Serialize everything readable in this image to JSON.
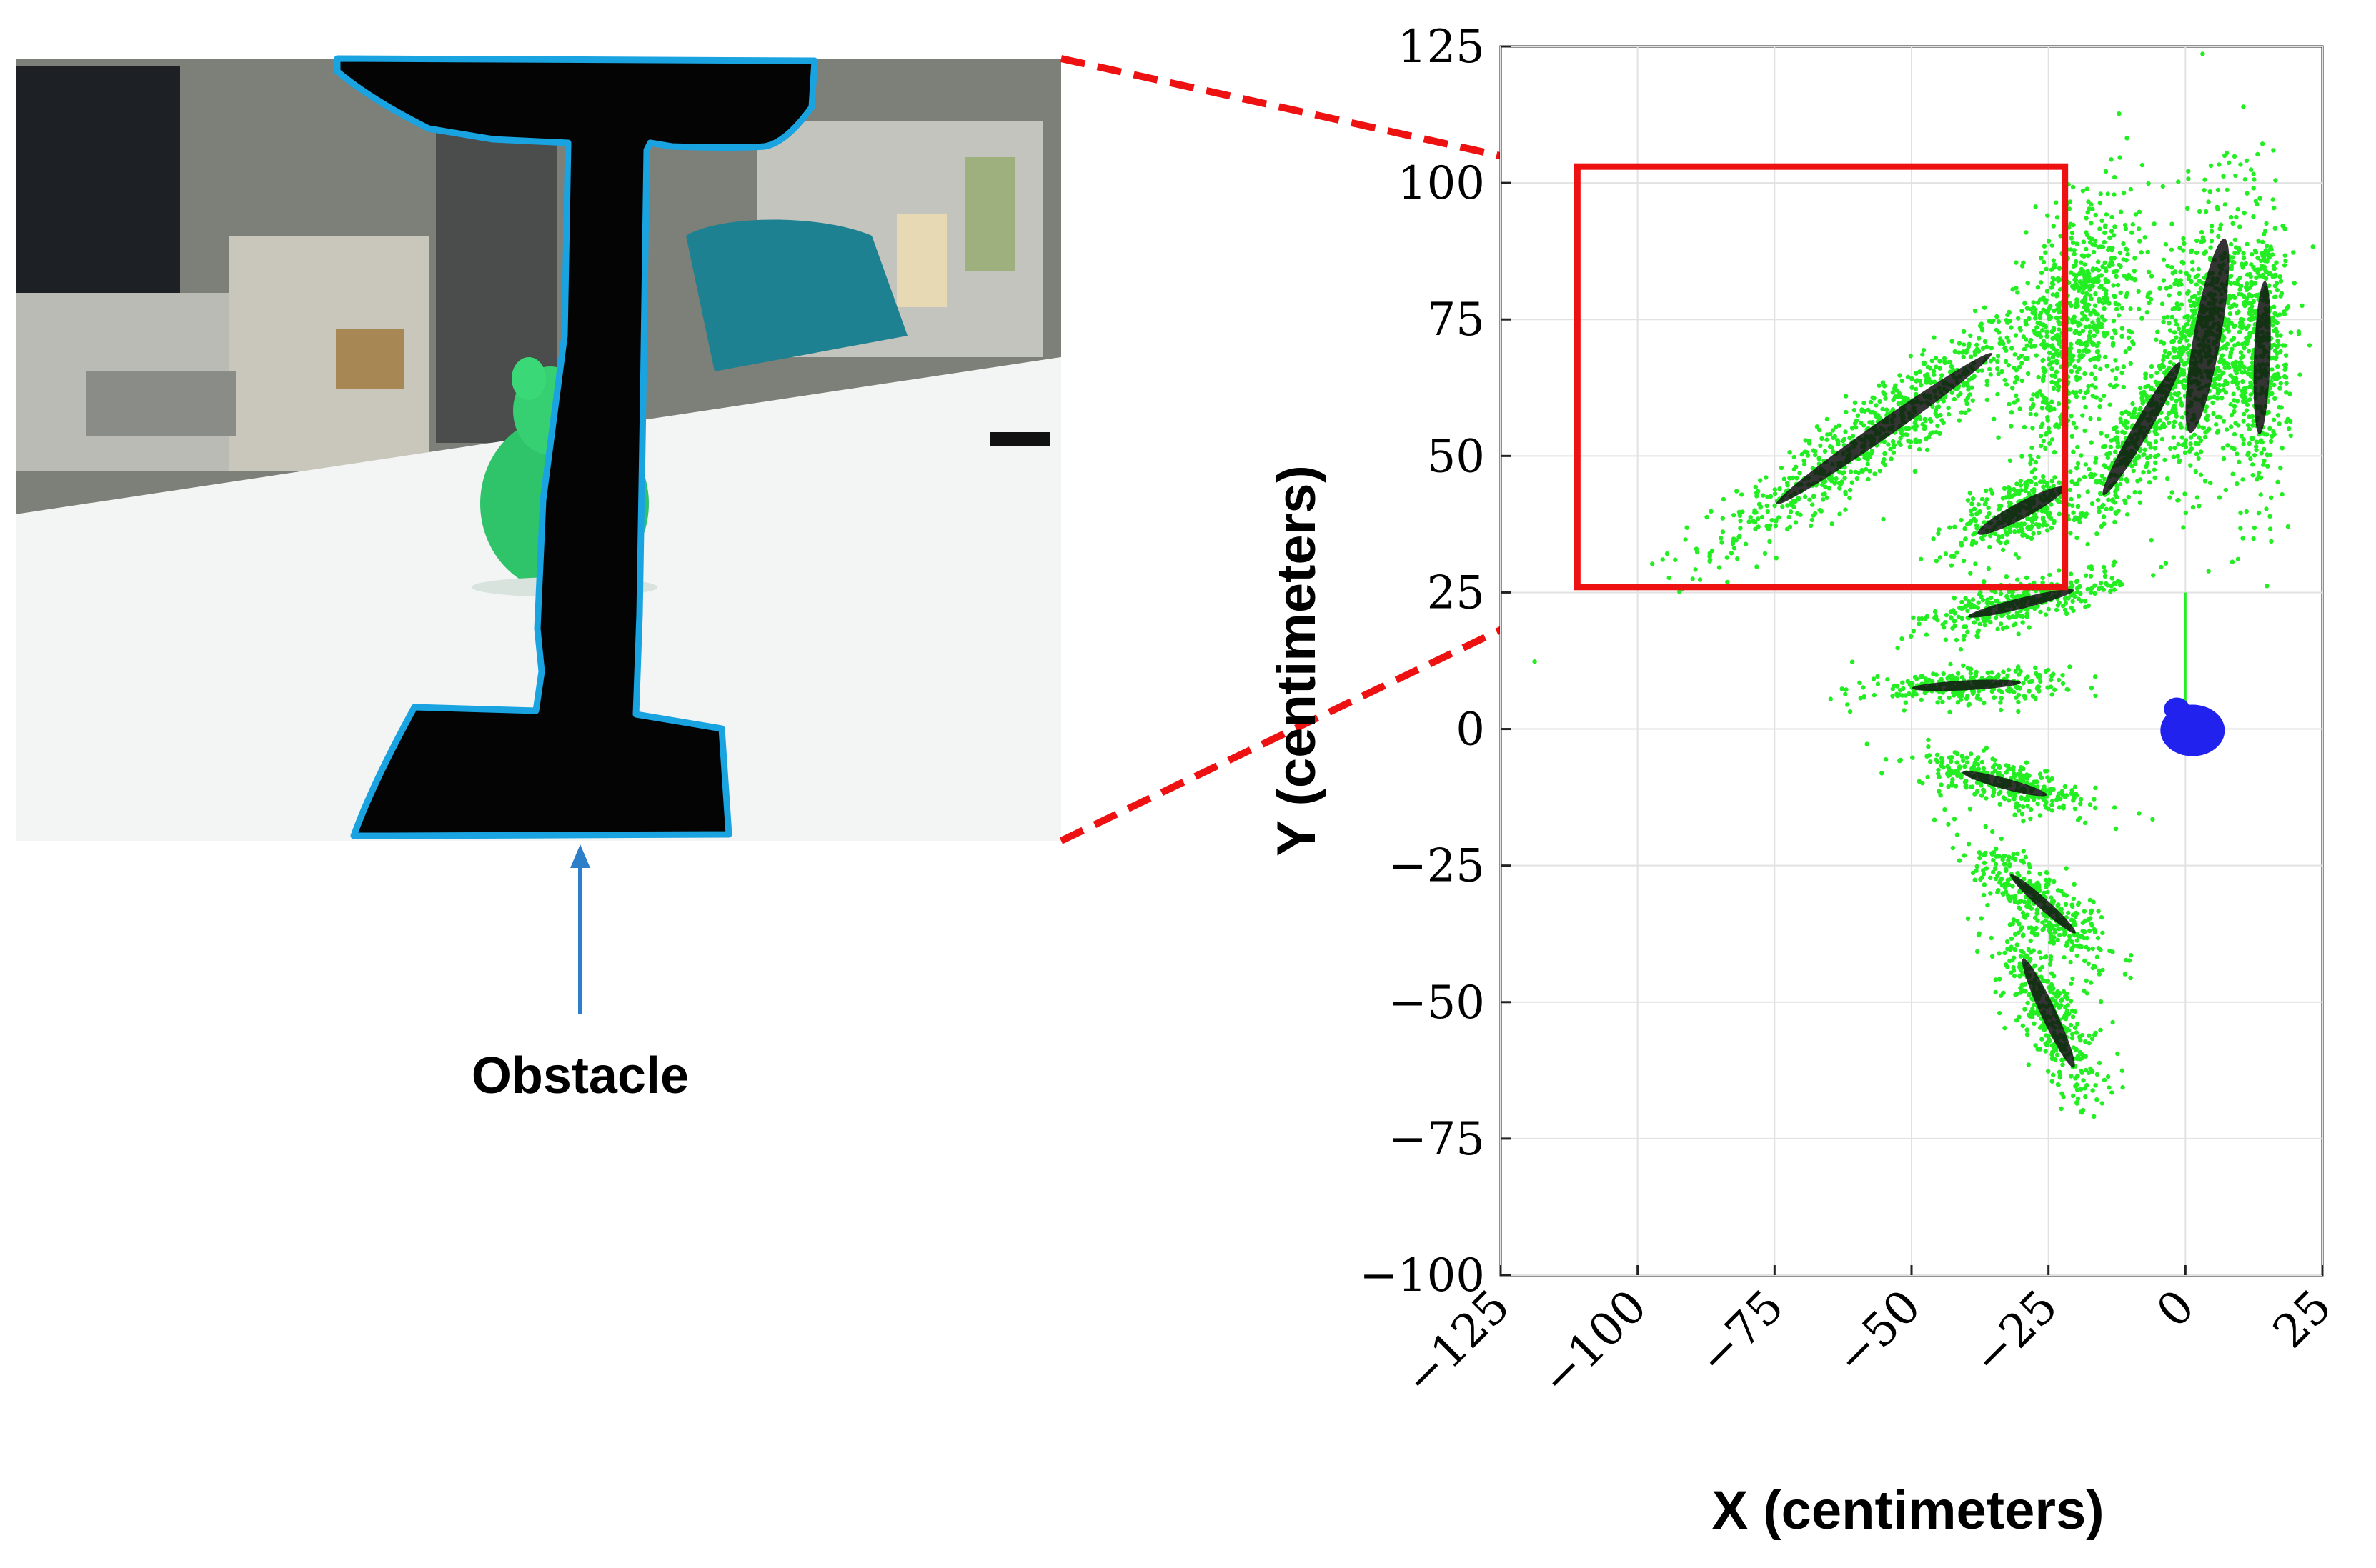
{
  "annotation": {
    "label": "Obstacle"
  },
  "chart_data": {
    "type": "scatter",
    "xlabel": "X (centimeters)",
    "ylabel": "Y (centimeters)",
    "xlim": [
      -125,
      25
    ],
    "ylim": [
      -100,
      125
    ],
    "xticks": [
      -125,
      -100,
      -75,
      -50,
      -25,
      0,
      25
    ],
    "yticks": [
      -100,
      -75,
      -50,
      -25,
      0,
      25,
      50,
      75,
      100,
      125
    ],
    "xtick_labels": [
      "−125",
      "−100",
      "−75",
      "−50",
      "−25",
      "0",
      "25"
    ],
    "ytick_labels": [
      "−100",
      "−75",
      "−50",
      "−25",
      "0",
      "25",
      "50",
      "75",
      "100",
      "125"
    ],
    "grid": true,
    "highlight_box": {
      "x_range": [
        -111,
        -22
      ],
      "y_range": [
        26,
        103
      ]
    },
    "clusters": [
      {
        "cx": -55,
        "cy": 55,
        "angle": 35,
        "spread_long": 38,
        "spread_short": 7,
        "ink_long": 24,
        "ink_short": 1.6
      },
      {
        "cx": -30,
        "cy": 40,
        "angle": 28,
        "spread_long": 13,
        "spread_short": 6,
        "ink_long": 9,
        "ink_short": 1.5
      },
      {
        "cx": -20,
        "cy": 75,
        "angle": 75,
        "spread_long": 24,
        "spread_short": 10,
        "ink_long": 0,
        "ink_short": 0
      },
      {
        "cx": -8,
        "cy": 55,
        "angle": 60,
        "spread_long": 20,
        "spread_short": 5,
        "ink_long": 14,
        "ink_short": 1.5
      },
      {
        "cx": 4,
        "cy": 72,
        "angle": 80,
        "spread_long": 28,
        "spread_short": 9,
        "ink_long": 18,
        "ink_short": 2.5
      },
      {
        "cx": 14,
        "cy": 68,
        "angle": 88,
        "spread_long": 25,
        "spread_short": 5,
        "ink_long": 14,
        "ink_short": 1.5
      },
      {
        "cx": -40,
        "cy": 8,
        "angle": 3,
        "spread_long": 18,
        "spread_short": 3,
        "ink_long": 10,
        "ink_short": 0.9
      },
      {
        "cx": -30,
        "cy": 23,
        "angle": 14,
        "spread_long": 18,
        "spread_short": 4,
        "ink_long": 10,
        "ink_short": 1.0
      },
      {
        "cx": -33,
        "cy": -10,
        "angle": -15,
        "spread_long": 17,
        "spread_short": 4,
        "ink_long": 8,
        "ink_short": 1.0
      },
      {
        "cx": -26,
        "cy": -32,
        "angle": -42,
        "spread_long": 17,
        "spread_short": 5,
        "ink_long": 8,
        "ink_short": 1.0
      },
      {
        "cx": -25,
        "cy": -52,
        "angle": -65,
        "spread_long": 18,
        "spread_short": 6,
        "ink_long": 11,
        "ink_short": 1.4
      }
    ],
    "robot_marker": {
      "x": 0,
      "y": 0
    },
    "colors": {
      "points": "#22ee22",
      "ellipses": "#111111",
      "robot": "#2222ee",
      "box": "#ee1111",
      "outline": "#19a3e0",
      "arrow": "#2c7fc8"
    }
  }
}
